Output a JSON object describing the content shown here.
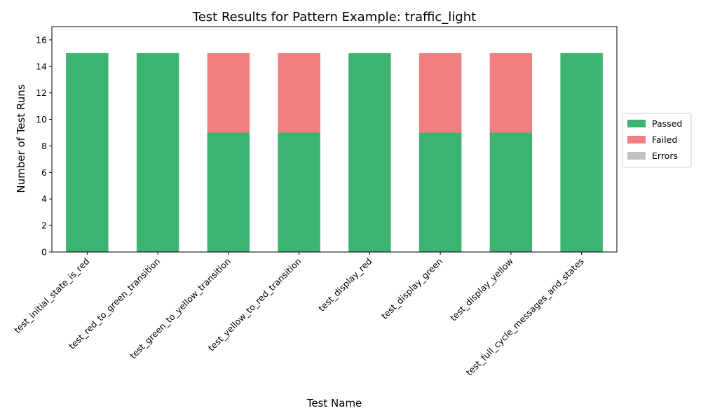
{
  "chart_data": {
    "type": "bar",
    "stacked": true,
    "title": "Test Results for Pattern Example: traffic_light",
    "xlabel": "Test Name",
    "ylabel": "Number of Test Runs",
    "ylim": [
      0,
      17
    ],
    "yticks": [
      0,
      2,
      4,
      6,
      8,
      10,
      12,
      14,
      16
    ],
    "grid": false,
    "legend_position": "right",
    "categories": [
      "test_initial_state_is_red",
      "test_red_to_green_transition",
      "test_green_to_yellow_transition",
      "test_yellow_to_red_transition",
      "test_display_red",
      "test_display_green",
      "test_display_yellow",
      "test_full_cycle_messages_and_states"
    ],
    "series": [
      {
        "name": "Passed",
        "color": "#3cb371",
        "values": [
          15,
          15,
          9,
          9,
          15,
          9,
          9,
          15
        ]
      },
      {
        "name": "Failed",
        "color": "#f08080",
        "values": [
          0,
          0,
          6,
          6,
          0,
          6,
          6,
          0
        ]
      },
      {
        "name": "Errors",
        "color": "#c0c0c0",
        "values": [
          0,
          0,
          0,
          0,
          0,
          0,
          0,
          0
        ]
      }
    ]
  }
}
